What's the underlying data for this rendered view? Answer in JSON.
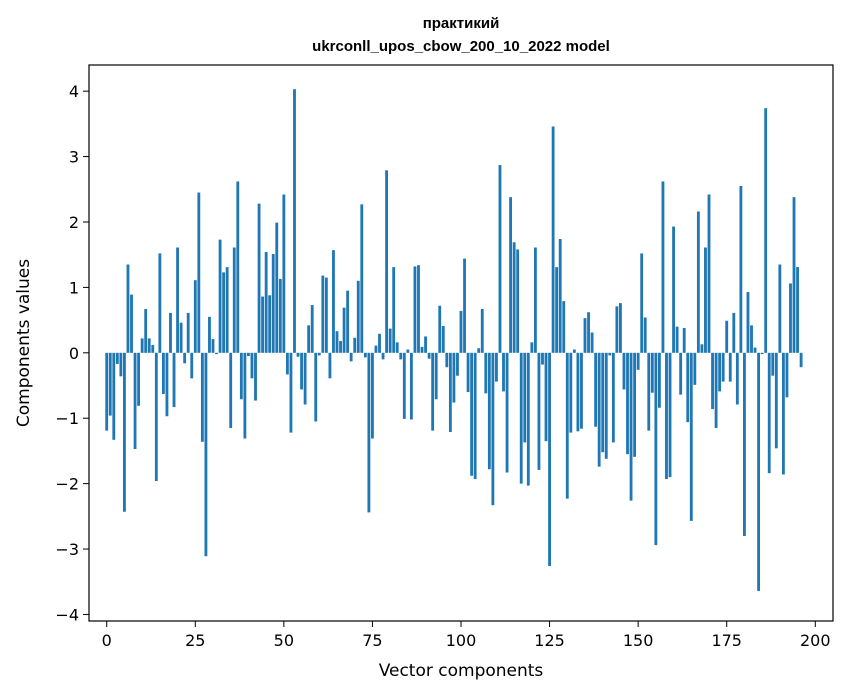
{
  "chart_data": {
    "type": "bar",
    "title": "практикий",
    "subtitle": "ukrconll_upos_cbow_200_10_2022 model",
    "xlabel": "Vector components",
    "ylabel": "Components values",
    "xlim": [
      -5,
      205
    ],
    "ylim": [
      -4.1,
      4.4
    ],
    "xticks": [
      0,
      25,
      50,
      75,
      100,
      125,
      150,
      175,
      200
    ],
    "yticks": [
      -4,
      -3,
      -2,
      -1,
      0,
      1,
      2,
      3,
      4
    ],
    "bar_color": "#1f77b4",
    "values": [
      -1.19,
      -0.96,
      -1.33,
      -0.17,
      -0.36,
      -2.43,
      1.35,
      0.89,
      -1.47,
      -0.81,
      0.22,
      0.67,
      0.22,
      0.12,
      -1.96,
      1.52,
      -0.63,
      -0.97,
      0.61,
      -0.83,
      1.61,
      0.46,
      -0.16,
      0.61,
      -0.39,
      1.11,
      2.45,
      -1.36,
      -3.11,
      0.55,
      0.21,
      -0.02,
      1.73,
      1.23,
      1.31,
      -1.15,
      1.61,
      2.62,
      -0.71,
      -1.31,
      -0.05,
      -0.39,
      -0.73,
      2.28,
      0.86,
      1.54,
      0.88,
      1.51,
      1.99,
      1.13,
      2.42,
      -0.33,
      -1.22,
      4.03,
      -0.06,
      -0.56,
      -0.79,
      0.42,
      0.73,
      -1.05,
      -0.04,
      1.18,
      1.15,
      -0.39,
      1.57,
      0.33,
      0.18,
      0.69,
      0.95,
      -0.13,
      0.23,
      1.1,
      2.27,
      -0.07,
      -2.44,
      -1.31,
      0.11,
      0.29,
      -0.1,
      2.79,
      0.37,
      1.31,
      0.16,
      -0.1,
      -1.01,
      0.05,
      -1.02,
      1.32,
      1.34,
      0.09,
      0.25,
      -0.09,
      -1.19,
      -0.71,
      0.72,
      0.41,
      -0.22,
      -1.21,
      -0.76,
      -0.35,
      0.64,
      1.44,
      -0.6,
      -1.88,
      -1.93,
      0.07,
      0.67,
      -0.62,
      -1.78,
      -2.33,
      -0.44,
      2.87,
      -0.59,
      -1.83,
      2.38,
      1.69,
      1.58,
      -2.0,
      -1.37,
      -2.03,
      0.16,
      1.61,
      -1.79,
      -0.18,
      -1.35,
      -3.26,
      3.46,
      1.31,
      1.74,
      0.79,
      -2.23,
      -1.22,
      0.05,
      -1.2,
      -1.16,
      0.53,
      0.62,
      0.31,
      -1.13,
      -1.74,
      -1.52,
      -1.62,
      -0.04,
      -1.37,
      0.71,
      0.76,
      -0.56,
      -1.55,
      -2.26,
      -1.59,
      -0.26,
      1.52,
      0.54,
      -1.19,
      -0.61,
      -2.94,
      -0.84,
      2.62,
      -1.93,
      -1.9,
      1.93,
      0.4,
      -0.64,
      0.38,
      -1.06,
      -2.57,
      -0.49,
      2.16,
      0.13,
      1.61,
      2.42,
      -0.86,
      -1.15,
      -0.59,
      -0.44,
      0.49,
      -0.44,
      0.61,
      -0.79,
      2.55,
      -2.8,
      0.93,
      0.42,
      0.08,
      -3.64,
      -0.02,
      3.74,
      -1.84,
      -0.35,
      -1.46,
      1.35,
      -1.86,
      -0.68,
      1.06,
      2.38,
      1.31,
      -0.22
    ]
  }
}
